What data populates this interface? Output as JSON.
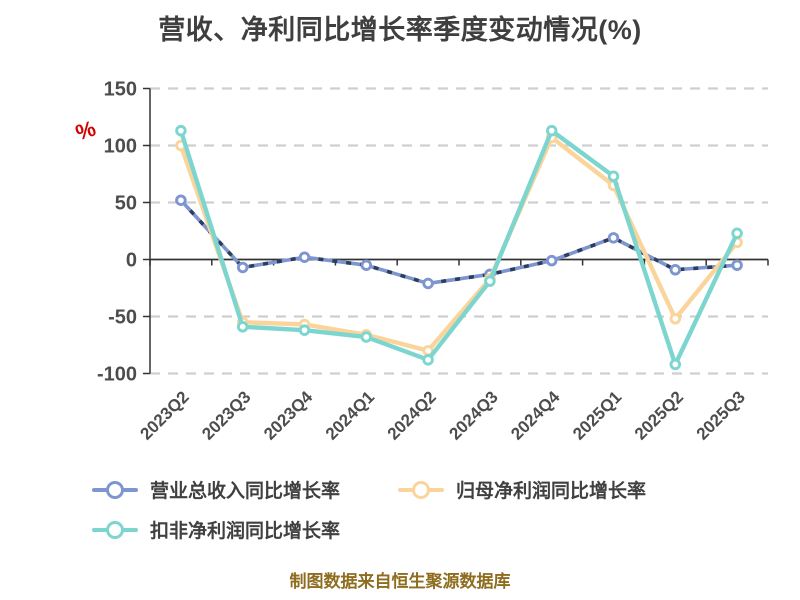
{
  "title": "营收、净利同比增长率季度变动情况(%)",
  "y_axis_name": "%",
  "footer": "制图数据来自恒生聚源数据库",
  "colors": {
    "background": "#ffffff",
    "title_text": "#3f3f3f",
    "axis_line": "#333333",
    "axis_label": "#4d4d4d",
    "grid_line": "#cfcfcf",
    "y_name_red": "#d40000",
    "footer_text": "#8e6d1f",
    "legend_text": "#404040",
    "revenue_dash_overlay": "#2e3c5e"
  },
  "chart_data": {
    "type": "line",
    "title": "营收、净利同比增长率季度变动情况(%)",
    "categories": [
      "2023Q2",
      "2023Q3",
      "2023Q4",
      "2024Q1",
      "2024Q2",
      "2024Q3",
      "2024Q4",
      "2025Q1",
      "2025Q2",
      "2025Q3"
    ],
    "series": [
      {
        "name": "营业总收入同比增长率",
        "color": "#7e96cf",
        "line_style": "dashed",
        "marker": "circle",
        "values": [
          52,
          -7,
          2,
          -5,
          -21,
          -13,
          -1,
          19,
          -9,
          -5
        ]
      },
      {
        "name": "归母净利润同比增长率",
        "color": "#fbd49b",
        "line_style": "solid",
        "marker": "circle",
        "values": [
          100,
          -55,
          -57,
          -66,
          -80,
          -17,
          107,
          65,
          -52,
          15
        ]
      },
      {
        "name": "扣非净利润同比增长率",
        "color": "#7cd6cf",
        "line_style": "solid",
        "marker": "circle",
        "values": [
          113,
          -59,
          -62,
          -68,
          -88,
          -19,
          113,
          73,
          -92,
          23
        ]
      }
    ],
    "xlabel": "",
    "ylabel": "%",
    "ylim": [
      -100,
      150
    ],
    "yticks": [
      150,
      100,
      50,
      0,
      -50,
      -100
    ],
    "grid": "horizontal-dashed",
    "zero_line": "solid",
    "x_label_rotation": -45,
    "legend_position": "bottom",
    "source_note": "制图数据来自恒生聚源数据库"
  },
  "legend": {
    "items": [
      "营业总收入同比增长率",
      "归母净利润同比增长率",
      "扣非净利润同比增长率"
    ]
  }
}
